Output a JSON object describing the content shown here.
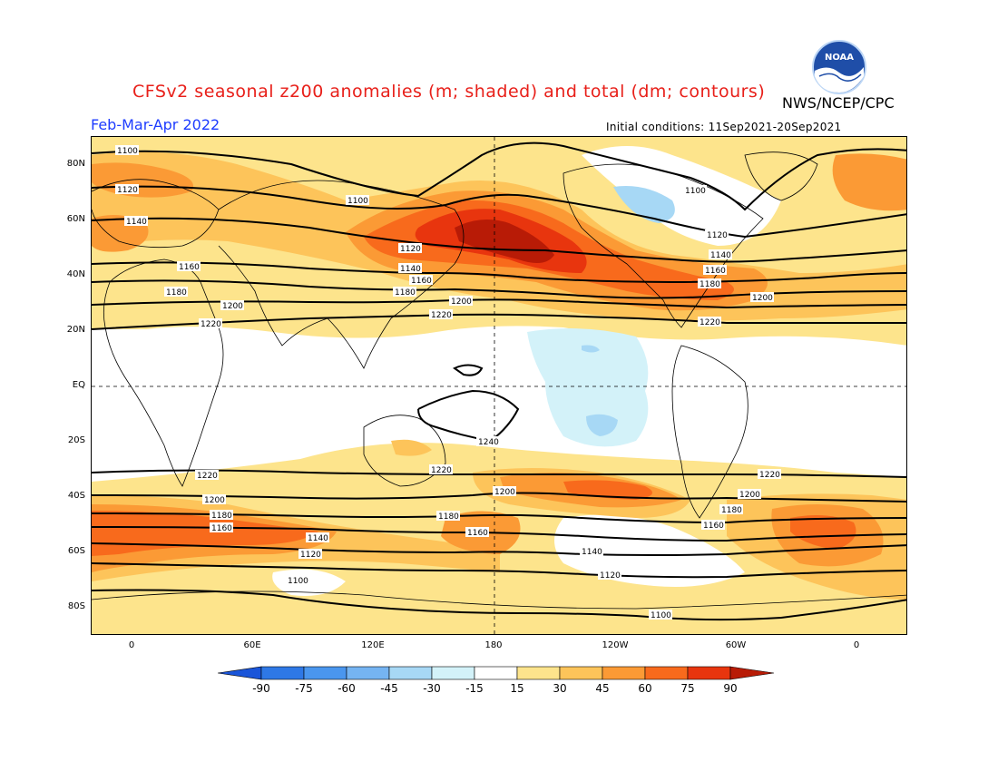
{
  "title": "CFSv2 seasonal z200 anomalies (m; shaded) and total (dm; contours)",
  "agency": "NWS/NCEP/CPC",
  "logo_text": "NOAA",
  "period": "Feb-Mar-Apr 2022",
  "initial_conditions": "Initial conditions: 11Sep2021-20Sep2021",
  "lat_labels": [
    "80N",
    "60N",
    "40N",
    "20N",
    "EQ",
    "20S",
    "40S",
    "60S",
    "80S"
  ],
  "lon_labels": [
    "0",
    "60E",
    "120E",
    "180",
    "120W",
    "60W",
    "0"
  ],
  "colorbar": {
    "labels": [
      "-90",
      "-75",
      "-60",
      "-45",
      "-30",
      "-15",
      "15",
      "30",
      "45",
      "60",
      "75",
      "90"
    ],
    "colors": [
      "#1a55d9",
      "#2e78e6",
      "#4a96ee",
      "#75b4f2",
      "#a7d8f5",
      "#d3f2f9",
      "#ffffff",
      "#fde48c",
      "#fdc45a",
      "#fb9a35",
      "#f86a1c",
      "#e8350e",
      "#b81b06"
    ]
  },
  "contour_labels": {
    "c1100": "1100",
    "c1120": "1120",
    "c1140": "1140",
    "c1160": "1160",
    "c1180": "1180",
    "c1200": "1200",
    "c1220": "1220",
    "c1240": "1240"
  }
}
